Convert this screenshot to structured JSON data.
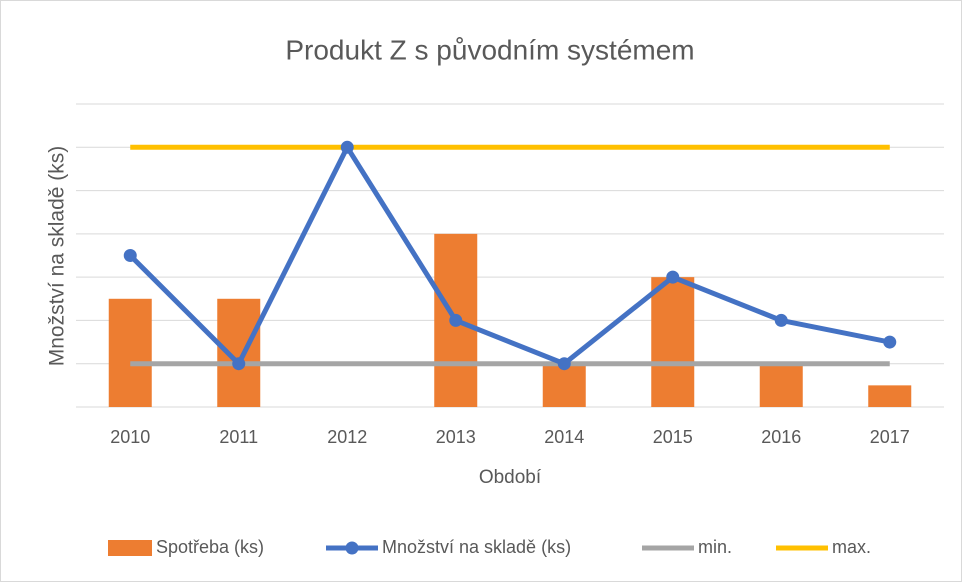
{
  "chart_data": {
    "type": "combo",
    "title": "Produkt Z s původním systémem",
    "x_label": "Období",
    "y_label": "Množství na skladě (ks)",
    "categories": [
      "2010",
      "2011",
      "2012",
      "2013",
      "2014",
      "2015",
      "2016",
      "2017"
    ],
    "ylim": [
      0,
      7
    ],
    "yticks": [
      0,
      1,
      2,
      3,
      4,
      5,
      6,
      7
    ],
    "grid": true,
    "legend": "bottom",
    "series": [
      {
        "name": "Spotřeba (ks)",
        "kind": "bar",
        "color": "#ed7d31",
        "values": [
          2.5,
          2.5,
          0,
          4,
          1,
          3,
          1,
          0.5
        ]
      },
      {
        "name": "Množství na skladě (ks)",
        "kind": "line",
        "markers": true,
        "color": "#4472c4",
        "values": [
          3.5,
          1,
          6,
          2,
          1,
          3,
          2,
          1.5
        ]
      },
      {
        "name": "min.",
        "kind": "line",
        "color": "#a5a5a5",
        "values": [
          1,
          1,
          1,
          1,
          1,
          1,
          1,
          1
        ]
      },
      {
        "name": "max.",
        "kind": "line",
        "color": "#ffc000",
        "values": [
          6,
          6,
          6,
          6,
          6,
          6,
          6,
          6
        ]
      }
    ]
  }
}
